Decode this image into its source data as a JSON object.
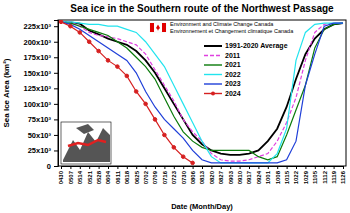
{
  "chart_data": {
    "type": "line",
    "title": "Sea ice in the Southern route of the Northwest Passage",
    "x_label": "Date (Month/Day)",
    "y_label": "Sea Ice Area (km²)",
    "annotations": [
      "Environment and Climate Change Canada",
      "Environnement et Changement climatique Canada"
    ],
    "categories": [
      "0430",
      "0507",
      "0514",
      "0521",
      "0528",
      "0604",
      "0611",
      "0618",
      "0625",
      "0702",
      "0709",
      "0716",
      "0723",
      "0730",
      "0806",
      "0813",
      "0820",
      "0827",
      "0903",
      "0910",
      "0917",
      "0924",
      "1001",
      "1008",
      "1015",
      "1022",
      "1029",
      "1105",
      "1112",
      "1119",
      "1126"
    ],
    "ylim": [
      0,
      235000
    ],
    "yticks": [
      0,
      {
        "value": 25000,
        "label": "25x10³"
      },
      {
        "value": 50000,
        "label": "50x10³"
      },
      {
        "value": 75000,
        "label": "75x10³"
      },
      {
        "value": 100000,
        "label": "100x10³"
      },
      {
        "value": 125000,
        "label": "125x10³"
      },
      {
        "value": 150000,
        "label": "150x10³"
      },
      {
        "value": 175000,
        "label": "175x10³"
      },
      {
        "value": 200000,
        "label": "200x10³"
      },
      {
        "value": 225000,
        "label": "225x10³"
      }
    ],
    "grid": false,
    "legend": "right",
    "series": [
      {
        "name": "1991-2020 Average",
        "color": "#000000",
        "line_style": "solid",
        "values": [
          232000,
          231000,
          229000,
          218000,
          212000,
          205000,
          200000,
          195000,
          185000,
          170000,
          150000,
          125000,
          100000,
          75000,
          50000,
          35000,
          25000,
          20000,
          18000,
          18000,
          20000,
          25000,
          40000,
          60000,
          95000,
          140000,
          180000,
          205000,
          220000,
          228000,
          230000
        ]
      },
      {
        "name": "2011",
        "color": "#e040e0",
        "line_style": "dashed",
        "values": [
          232000,
          232000,
          225000,
          215000,
          210000,
          208000,
          205000,
          200000,
          195000,
          180000,
          155000,
          130000,
          105000,
          75000,
          55000,
          40000,
          20000,
          10000,
          8000,
          8000,
          10000,
          15000,
          20000,
          40000,
          70000,
          110000,
          170000,
          215000,
          228000,
          230000,
          230000
        ]
      },
      {
        "name": "2021",
        "color": "#0a7a0a",
        "line_style": "solid",
        "values": [
          232000,
          230000,
          225000,
          220000,
          215000,
          210000,
          200000,
          190000,
          175000,
          160000,
          140000,
          110000,
          80000,
          55000,
          40000,
          30000,
          25000,
          25000,
          25000,
          25000,
          25000,
          15000,
          10000,
          15000,
          50000,
          90000,
          130000,
          190000,
          220000,
          228000,
          230000
        ]
      },
      {
        "name": "2022",
        "color": "#22e4ee",
        "line_style": "solid",
        "values": [
          232000,
          232000,
          230000,
          228000,
          228000,
          225000,
          225000,
          220000,
          215000,
          200000,
          180000,
          160000,
          130000,
          100000,
          70000,
          40000,
          15000,
          5000,
          5000,
          5000,
          5000,
          5000,
          5000,
          20000,
          60000,
          170000,
          215000,
          228000,
          230000,
          230000,
          230000
        ]
      },
      {
        "name": "2023",
        "color": "#1f3fd8",
        "line_style": "solid",
        "values": [
          232000,
          228000,
          220000,
          210000,
          200000,
          190000,
          180000,
          170000,
          150000,
          120000,
          95000,
          75000,
          60000,
          45000,
          25000,
          10000,
          5000,
          5000,
          5000,
          5000,
          5000,
          5000,
          5000,
          5000,
          10000,
          40000,
          130000,
          180000,
          225000,
          230000,
          230000
        ]
      },
      {
        "name": "2024",
        "color": "#d62020",
        "line_style": "solid",
        "marker": "circle",
        "values": [
          232000,
          225000,
          215000,
          200000,
          185000,
          170000,
          160000,
          145000,
          120000,
          100000,
          75000,
          50000,
          30000,
          15000,
          5000,
          null,
          null,
          null,
          null,
          null,
          null,
          null,
          null,
          null,
          null,
          null,
          null,
          null,
          null,
          null,
          null
        ]
      }
    ]
  }
}
